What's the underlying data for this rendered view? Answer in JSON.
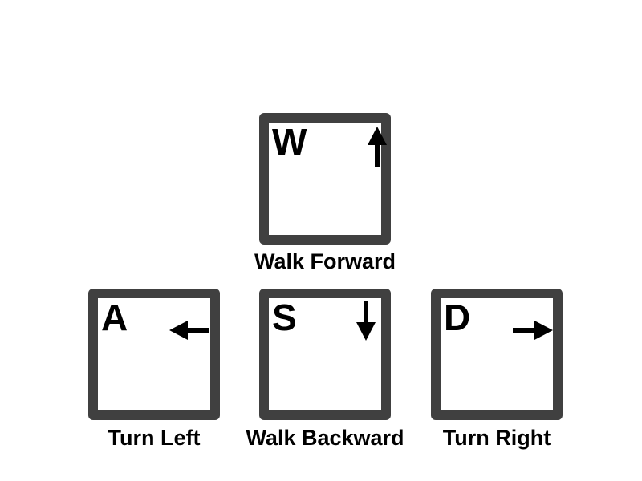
{
  "diagram": {
    "keys": {
      "w": {
        "letter": "W",
        "label": "Walk Forward",
        "arrow": "up-arrow-icon"
      },
      "a": {
        "letter": "A",
        "label": "Turn Left",
        "arrow": "left-arrow-icon"
      },
      "s": {
        "letter": "S",
        "label": "Walk Backward",
        "arrow": "down-arrow-icon"
      },
      "d": {
        "letter": "D",
        "label": "Turn Right",
        "arrow": "right-arrow-icon"
      }
    },
    "colors": {
      "key_border": "#404040",
      "text": "#000000",
      "background": "#ffffff"
    }
  }
}
